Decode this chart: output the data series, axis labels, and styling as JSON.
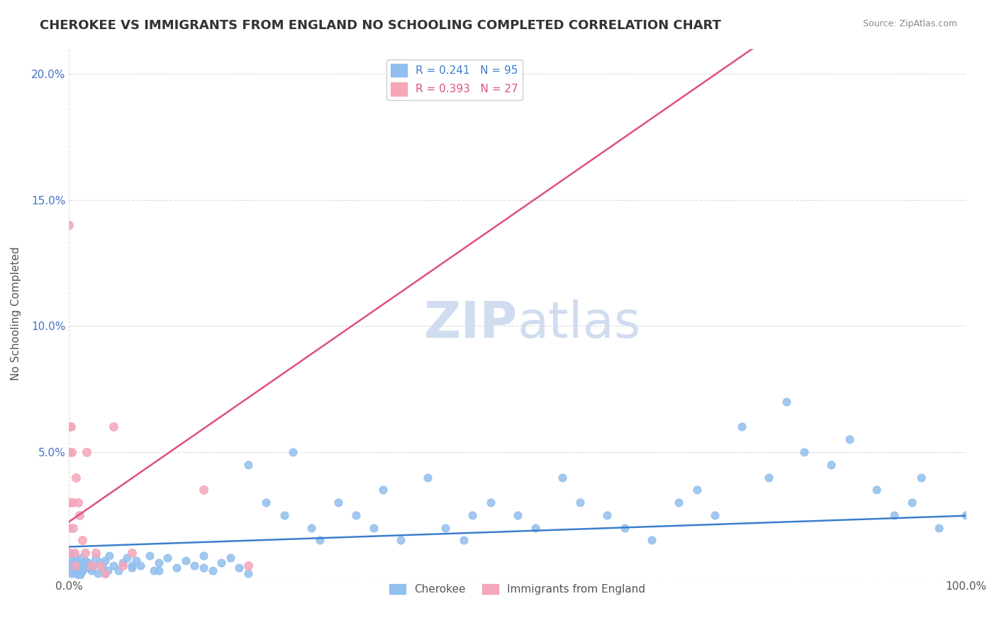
{
  "title": "CHEROKEE VS IMMIGRANTS FROM ENGLAND NO SCHOOLING COMPLETED CORRELATION CHART",
  "source_text": "Source: ZipAtlas.com",
  "ylabel": "No Schooling Completed",
  "xlabel": "",
  "legend_label_1": "Cherokee",
  "legend_label_2": "Immigrants from England",
  "r1": 0.241,
  "n1": 95,
  "r2": 0.393,
  "n2": 27,
  "color1": "#92BFED",
  "color2": "#F4A7B9",
  "line_color1": "#3B7FCC",
  "line_color2": "#E05080",
  "watermark_color": "#D0DCF0",
  "background_color": "#FFFFFF",
  "grid_color": "#DDDDDD",
  "xlim": [
    0.0,
    1.0
  ],
  "ylim": [
    0.0,
    0.21
  ],
  "yticks": [
    0.0,
    0.05,
    0.1,
    0.15,
    0.2
  ],
  "ytick_labels": [
    "",
    "5.0%",
    "10.0%",
    "15.0%",
    "20.0%"
  ],
  "xticks": [
    0.0,
    1.0
  ],
  "xtick_labels": [
    "0.0%",
    "100.0%"
  ],
  "cherokee_x": [
    0.0,
    0.001,
    0.002,
    0.003,
    0.004,
    0.005,
    0.006,
    0.007,
    0.008,
    0.009,
    0.01,
    0.011,
    0.012,
    0.013,
    0.014,
    0.015,
    0.016,
    0.018,
    0.02,
    0.022,
    0.025,
    0.027,
    0.03,
    0.032,
    0.035,
    0.038,
    0.04,
    0.043,
    0.045,
    0.05,
    0.055,
    0.06,
    0.065,
    0.07,
    0.075,
    0.08,
    0.09,
    0.095,
    0.1,
    0.11,
    0.12,
    0.13,
    0.14,
    0.15,
    0.16,
    0.17,
    0.18,
    0.19,
    0.2,
    0.22,
    0.24,
    0.25,
    0.27,
    0.28,
    0.3,
    0.32,
    0.34,
    0.35,
    0.37,
    0.4,
    0.42,
    0.44,
    0.45,
    0.47,
    0.5,
    0.52,
    0.55,
    0.57,
    0.6,
    0.62,
    0.65,
    0.68,
    0.7,
    0.72,
    0.75,
    0.78,
    0.8,
    0.82,
    0.85,
    0.87,
    0.9,
    0.92,
    0.94,
    0.95,
    0.97,
    1.0,
    0.003,
    0.007,
    0.012,
    0.025,
    0.04,
    0.07,
    0.1,
    0.15,
    0.2
  ],
  "cherokee_y": [
    0.01,
    0.005,
    0.008,
    0.003,
    0.006,
    0.004,
    0.009,
    0.002,
    0.007,
    0.003,
    0.005,
    0.004,
    0.006,
    0.002,
    0.008,
    0.003,
    0.005,
    0.007,
    0.004,
    0.006,
    0.003,
    0.005,
    0.008,
    0.002,
    0.006,
    0.004,
    0.007,
    0.003,
    0.009,
    0.005,
    0.003,
    0.006,
    0.008,
    0.004,
    0.007,
    0.005,
    0.009,
    0.003,
    0.006,
    0.008,
    0.004,
    0.007,
    0.005,
    0.009,
    0.003,
    0.006,
    0.008,
    0.004,
    0.045,
    0.03,
    0.025,
    0.05,
    0.02,
    0.015,
    0.03,
    0.025,
    0.02,
    0.035,
    0.015,
    0.04,
    0.02,
    0.015,
    0.025,
    0.03,
    0.025,
    0.02,
    0.04,
    0.03,
    0.025,
    0.02,
    0.015,
    0.03,
    0.035,
    0.025,
    0.06,
    0.04,
    0.07,
    0.05,
    0.045,
    0.055,
    0.035,
    0.025,
    0.03,
    0.04,
    0.02,
    0.025,
    0.002,
    0.003,
    0.001,
    0.004,
    0.002,
    0.005,
    0.003,
    0.004,
    0.002
  ],
  "england_x": [
    0.0,
    0.0,
    0.0,
    0.0,
    0.0,
    0.001,
    0.002,
    0.003,
    0.004,
    0.005,
    0.006,
    0.007,
    0.008,
    0.01,
    0.012,
    0.015,
    0.018,
    0.02,
    0.025,
    0.03,
    0.035,
    0.04,
    0.05,
    0.06,
    0.07,
    0.15,
    0.2
  ],
  "england_y": [
    0.14,
    0.06,
    0.05,
    0.03,
    0.02,
    0.01,
    0.06,
    0.05,
    0.03,
    0.02,
    0.01,
    0.005,
    0.04,
    0.03,
    0.025,
    0.015,
    0.01,
    0.05,
    0.005,
    0.01,
    0.005,
    0.002,
    0.06,
    0.005,
    0.01,
    0.035,
    0.005
  ]
}
